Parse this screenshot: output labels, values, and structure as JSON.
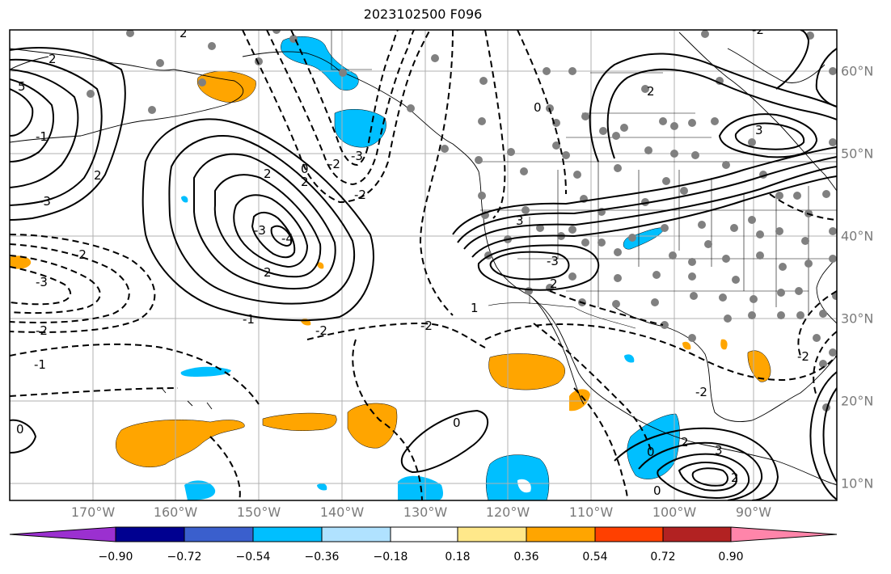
{
  "title": "2023102500 F096",
  "map": {
    "lon_labels": [
      "170°W",
      "160°W",
      "150°W",
      "140°W",
      "130°W",
      "120°W",
      "110°W",
      "100°W",
      "90°W"
    ],
    "lat_labels": [
      "60°N",
      "50°N",
      "40°N",
      "30°N",
      "20°N",
      "10°N"
    ],
    "contour_labels": [
      "5",
      "2",
      "2",
      "-1",
      "-3",
      "-3",
      "-2",
      "2",
      "-2",
      "-1",
      "0",
      "2",
      "-3",
      "2",
      "-4",
      "0",
      "-2",
      "-2",
      "2",
      "-3",
      "-2",
      "-1",
      "-2",
      "-2",
      "0",
      "3",
      "2",
      "0",
      "2",
      "0",
      "-2",
      "1",
      "-3",
      "3",
      "3",
      "0",
      "2",
      "2",
      "-2"
    ]
  },
  "colorbar": {
    "ticks": [
      "−0.90",
      "−0.72",
      "−0.54",
      "−0.36",
      "−0.18",
      "0.18",
      "0.36",
      "0.54",
      "0.72",
      "0.90"
    ],
    "colors": [
      "#9b30d0",
      "#000090",
      "#3a5fcd",
      "#00bfff",
      "#b0e2ff",
      "#ffffff",
      "#ffe88a",
      "#ffa500",
      "#ff4000",
      "#b22222",
      "#ff85aa"
    ]
  }
}
